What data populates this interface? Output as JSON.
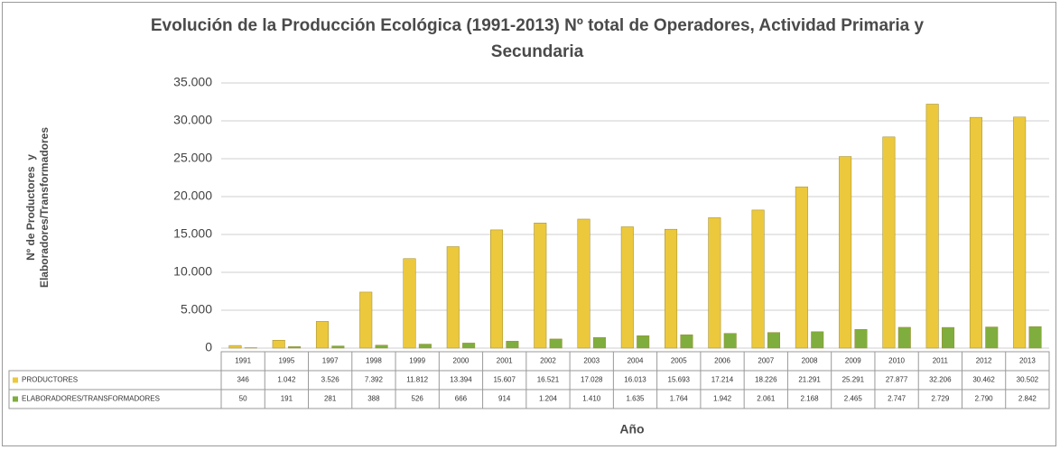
{
  "chart_data": {
    "type": "bar",
    "title": "Evolución de la Producción Ecológica  (1991-2013) Nº total de Operadores, Actividad Primaria y Secundaria",
    "ylabel": [
      "Nº de Productores  y",
      "Elaboradores/Transformadores"
    ],
    "xlabel": "Año",
    "categories": [
      "1991",
      "1995",
      "1997",
      "1998",
      "1999",
      "2000",
      "2001",
      "2002",
      "2003",
      "2004",
      "2005",
      "2006",
      "2007",
      "2008",
      "2009",
      "2010",
      "2011",
      "2012",
      "2013"
    ],
    "series": [
      {
        "name": "PRODUCTORES",
        "color": "#ecc83c",
        "values": [
          346,
          1042,
          3526,
          7392,
          11812,
          13394,
          15607,
          16521,
          17028,
          16013,
          15693,
          17214,
          18226,
          21291,
          25291,
          27877,
          32206,
          30462,
          30502
        ],
        "value_labels": [
          "346",
          "1.042",
          "3.526",
          "7.392",
          "11.812",
          "13.394",
          "15.607",
          "16.521",
          "17.028",
          "16.013",
          "15.693",
          "17.214",
          "18.226",
          "21.291",
          "25.291",
          "27.877",
          "32.206",
          "30.462",
          "30.502"
        ]
      },
      {
        "name": "ELABORADORES/TRANSFORMADORES",
        "color": "#7fae3e",
        "values": [
          50,
          191,
          281,
          388,
          526,
          666,
          914,
          1204,
          1410,
          1635,
          1764,
          1942,
          2061,
          2168,
          2465,
          2747,
          2729,
          2790,
          2842
        ],
        "value_labels": [
          "50",
          "191",
          "281",
          "388",
          "526",
          "666",
          "914",
          "1.204",
          "1.410",
          "1.635",
          "1.764",
          "1.942",
          "2.061",
          "2.168",
          "2.465",
          "2.747",
          "2.729",
          "2.790",
          "2.842"
        ]
      }
    ],
    "ylim": [
      0,
      35000
    ],
    "yticks": [
      0,
      {
        "value": 5000,
        "label": "5.000"
      },
      {
        "value": 10000,
        "label": "10.000"
      },
      {
        "value": 15000,
        "label": "15.000"
      },
      {
        "value": 20000,
        "label": "20.000"
      },
      {
        "value": 25000,
        "label": "25.000"
      },
      {
        "value": 30000,
        "label": "30.000"
      },
      {
        "value": 35000,
        "label": "35.000"
      }
    ],
    "grid": true
  }
}
